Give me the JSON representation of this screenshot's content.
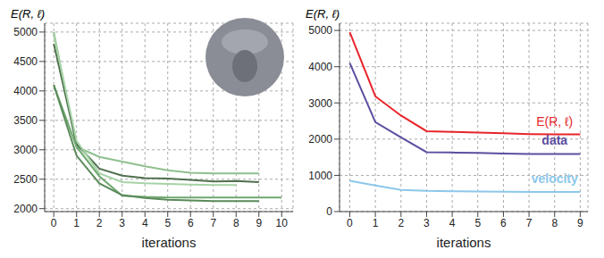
{
  "chart_data": [
    {
      "type": "line",
      "y_label": "E(R, ℓ)",
      "x_label": "iterations",
      "grid": true,
      "x": [
        0,
        1,
        2,
        3,
        4,
        5,
        6,
        7,
        8,
        9,
        10
      ],
      "xlim": [
        -0.4,
        10.5
      ],
      "xticks": [
        0,
        1,
        2,
        3,
        4,
        5,
        6,
        7,
        8,
        9,
        10
      ],
      "ylim": [
        1950,
        5150
      ],
      "yticks": [
        2000,
        2500,
        3000,
        3500,
        4000,
        4500,
        5000
      ],
      "series": [
        {
          "color": "#8fbf8f",
          "values": [
            5000,
            3050,
            2880,
            2800,
            2720,
            2650,
            2610,
            2600,
            2600,
            2600,
            null
          ]
        },
        {
          "color": "#4f6f4f",
          "values": [
            4800,
            3100,
            2680,
            2560,
            2520,
            2510,
            2490,
            2460,
            2470,
            2450,
            null
          ]
        },
        {
          "color": "#a6d3a6",
          "values": [
            4950,
            3150,
            2600,
            2450,
            2430,
            2420,
            2410,
            2400,
            2400,
            null,
            null
          ]
        },
        {
          "color": "#6fa86f",
          "values": [
            4100,
            3050,
            2550,
            2220,
            2200,
            2190,
            2190,
            2190,
            2190,
            2190,
            2190
          ]
        },
        {
          "color": "#5a8a5a",
          "values": [
            4100,
            2900,
            2430,
            2230,
            2180,
            2150,
            2140,
            2130,
            2130,
            2130,
            null
          ]
        }
      ]
    },
    {
      "type": "line",
      "y_label": "E(R, ℓ)",
      "x_label": "iterations",
      "grid": true,
      "x": [
        0,
        1,
        2,
        3,
        4,
        5,
        6,
        7,
        8,
        9
      ],
      "xlim": [
        -0.4,
        9.3
      ],
      "xticks": [
        0,
        1,
        2,
        3,
        4,
        5,
        6,
        7,
        8,
        9
      ],
      "ylim": [
        0,
        5200
      ],
      "yticks": [
        0,
        1000,
        2000,
        3000,
        4000,
        5000
      ],
      "series": [
        {
          "name": "E(R, ℓ)",
          "color": "#e8242a",
          "values": [
            4950,
            3180,
            2650,
            2220,
            2200,
            2180,
            2160,
            2140,
            2130,
            2130
          ]
        },
        {
          "name": "data",
          "color": "#5b4ea0",
          "values": [
            4100,
            2470,
            2050,
            1640,
            1630,
            1620,
            1600,
            1590,
            1590,
            1590
          ]
        },
        {
          "name": "velocity",
          "color": "#8cc7ea",
          "values": [
            850,
            720,
            600,
            570,
            560,
            555,
            550,
            540,
            540,
            540
          ]
        }
      ]
    }
  ]
}
